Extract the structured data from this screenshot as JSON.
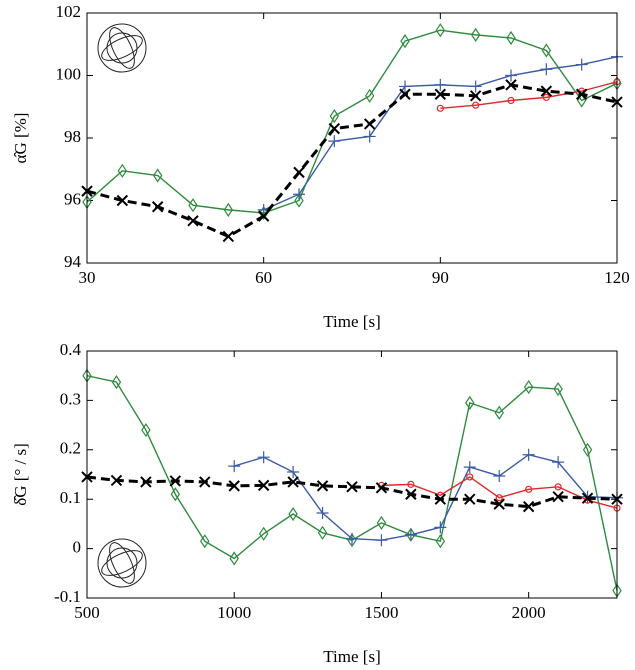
{
  "chart_data": [
    {
      "type": "line",
      "xlabel": "Time [s]",
      "ylabel": "α̂G [%]",
      "x": [
        30,
        36,
        42,
        48,
        54,
        60,
        66,
        72,
        78,
        84,
        90,
        96,
        102,
        108,
        114,
        120
      ],
      "xlim": [
        30,
        120
      ],
      "xticks": [
        30,
        60,
        90,
        120
      ],
      "ylim": [
        94,
        102
      ],
      "yticks": [
        94,
        96,
        98,
        100,
        102
      ],
      "series": [
        {
          "color": "#2e8b3e",
          "marker": "diamond",
          "dashed": false,
          "values": [
            95.95,
            96.95,
            96.8,
            95.85,
            95.7,
            95.6,
            96.0,
            98.7,
            99.35,
            101.1,
            101.45,
            101.3,
            101.2,
            100.8,
            99.2,
            99.75
          ]
        },
        {
          "color": "#3b5ba5",
          "marker": "plus",
          "dashed": false,
          "values": [
            null,
            null,
            null,
            null,
            null,
            95.7,
            96.2,
            97.9,
            98.05,
            99.65,
            99.7,
            99.65,
            100.0,
            100.2,
            100.35,
            100.6
          ]
        },
        {
          "color": "#e02a2a",
          "marker": "circle",
          "dashed": false,
          "values": [
            null,
            null,
            null,
            null,
            null,
            null,
            null,
            null,
            null,
            null,
            98.95,
            99.05,
            99.2,
            99.3,
            99.5,
            99.8
          ]
        },
        {
          "color": "#000000",
          "marker": "x",
          "dashed": true,
          "values": [
            96.3,
            96.0,
            95.8,
            95.35,
            94.85,
            95.5,
            96.9,
            98.3,
            98.45,
            99.4,
            99.4,
            99.35,
            99.7,
            99.5,
            99.4,
            99.15
          ]
        }
      ]
    },
    {
      "type": "line",
      "xlabel": "Time [s]",
      "ylabel": "δ̂G [° / s]",
      "x": [
        500,
        600,
        700,
        800,
        900,
        1000,
        1100,
        1200,
        1300,
        1400,
        1500,
        1600,
        1700,
        1800,
        1900,
        2000,
        2100,
        2200,
        2300
      ],
      "xlim": [
        500,
        2300
      ],
      "xticks": [
        500,
        1000,
        1500,
        2000
      ],
      "ylim": [
        -0.1,
        0.4
      ],
      "yticks": [
        -0.1,
        0,
        0.1,
        0.2,
        0.3,
        0.4
      ],
      "series": [
        {
          "color": "#2e8b3e",
          "marker": "diamond",
          "dashed": false,
          "values": [
            0.35,
            0.337,
            0.24,
            0.11,
            0.015,
            -0.02,
            0.03,
            0.07,
            0.032,
            0.017,
            0.052,
            0.028,
            0.015,
            0.295,
            0.275,
            0.327,
            0.323,
            0.2,
            -0.085
          ]
        },
        {
          "color": "#3b5ba5",
          "marker": "plus",
          "dashed": false,
          "values": [
            null,
            null,
            null,
            null,
            null,
            0.167,
            0.185,
            0.155,
            0.072,
            0.02,
            0.017,
            0.028,
            0.043,
            0.165,
            0.147,
            0.19,
            0.175,
            0.105,
            0.103
          ]
        },
        {
          "color": "#e02a2a",
          "marker": "circle",
          "dashed": false,
          "values": [
            null,
            null,
            null,
            null,
            null,
            null,
            null,
            null,
            null,
            null,
            0.128,
            0.13,
            0.108,
            0.145,
            0.103,
            0.12,
            0.125,
            0.098,
            0.082
          ]
        },
        {
          "color": "#000000",
          "marker": "x",
          "dashed": true,
          "values": [
            0.145,
            0.138,
            0.135,
            0.137,
            0.135,
            0.127,
            0.128,
            0.135,
            0.127,
            0.125,
            0.123,
            0.11,
            0.1,
            0.1,
            0.09,
            0.085,
            0.105,
            0.102,
            0.1
          ]
        }
      ]
    }
  ]
}
